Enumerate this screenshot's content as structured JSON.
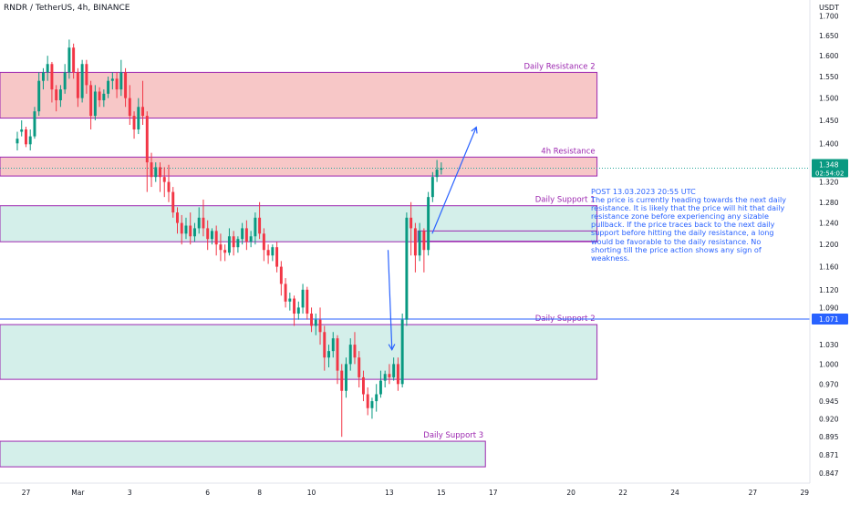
{
  "header": {
    "symbol_title": "RNDR / TetherUS, 4h, BINANCE"
  },
  "currency_label": "USDT",
  "colors": {
    "up": "#089981",
    "down": "#f23645",
    "resistance_fill": "#f7c4c4",
    "support_fill": "#cdece6",
    "zone_border": "#9c27b0",
    "zone_label": "#9c27b0",
    "note": "#2962ff",
    "price_line": "#26a69a",
    "blue_line": "#2962ff"
  },
  "zones": [
    {
      "label": "Daily Resistance 2",
      "type": "resistance",
      "from_day": -3,
      "to_day": 20,
      "top": 1.56,
      "bottom": 1.455
    },
    {
      "label": "4h Resistance",
      "type": "resistance",
      "from_day": -3,
      "to_day": 20,
      "top": 1.371,
      "bottom": 1.332
    },
    {
      "label": "Daily Support 1",
      "type": "support",
      "from_day": -3,
      "to_day": 20,
      "top": 1.273,
      "bottom": 1.205
    },
    {
      "label": "",
      "type": "support",
      "from_day": 13.1,
      "to_day": 20,
      "top": 1.225,
      "bottom": 1.206
    },
    {
      "label": "Daily Support 2",
      "type": "support",
      "from_day": -3,
      "to_day": 20,
      "top": 1.062,
      "bottom": 0.977
    },
    {
      "label": "Daily Support 3",
      "type": "support",
      "from_day": -3,
      "to_day": 15.7,
      "top": 0.889,
      "bottom": 0.855
    }
  ],
  "annotation": {
    "title": "POST 13.03.2023 20:55 UTC",
    "text": "The price is currently heading towards the next daily resistance. It is likely that the price will hit that daily resistance zone before experiencing any sizable pullback. If the price traces back to the next daily support before hitting the daily resistance, a long would be favorable to the daily resistance. No shorting till the price action shows any sign of weakness."
  },
  "chart_data": {
    "type": "candlestick",
    "title": "RNDR / TetherUS, 4h, BINANCE",
    "timeframe": "4h",
    "x_unit": "days from Mar 1, 2023 (4h candles)",
    "x_ticks": [
      {
        "day": -2,
        "label": "27"
      },
      {
        "day": 0,
        "label": "Mar"
      },
      {
        "day": 2,
        "label": "3"
      },
      {
        "day": 5,
        "label": "6"
      },
      {
        "day": 7,
        "label": "8"
      },
      {
        "day": 9,
        "label": "10"
      },
      {
        "day": 12,
        "label": "13"
      },
      {
        "day": 14,
        "label": "15"
      },
      {
        "day": 16,
        "label": "17"
      },
      {
        "day": 19,
        "label": "20"
      },
      {
        "day": 21,
        "label": "22"
      },
      {
        "day": 23,
        "label": "24"
      },
      {
        "day": 26,
        "label": "27"
      },
      {
        "day": 28,
        "label": "29"
      }
    ],
    "x_range": [
      -3.0,
      28.2
    ],
    "y_ticks": [
      1.7,
      1.65,
      1.6,
      1.55,
      1.5,
      1.45,
      1.4,
      1.36,
      1.32,
      1.28,
      1.24,
      1.2,
      1.16,
      1.12,
      1.09,
      1.06,
      1.03,
      1.0,
      0.97,
      0.945,
      0.92,
      0.895,
      0.871,
      0.847
    ],
    "y_scale": "log",
    "y_range": [
      0.834,
      1.742
    ],
    "grid": false,
    "current_price": {
      "value": "1.348",
      "countdown": "02:54:02"
    },
    "marked_level": {
      "value": "1.071"
    },
    "projection_arrows": [
      {
        "from": {
          "day": 13.65,
          "price": 1.22
        },
        "to": {
          "day": 15.35,
          "price": 1.435
        }
      },
      {
        "from": {
          "day": 11.95,
          "price": 1.19
        },
        "to": {
          "day": 12.1,
          "price": 1.022
        }
      }
    ],
    "candles": [
      [
        1.4,
        1.425,
        1.41,
        1.385
      ],
      [
        1.425,
        1.45,
        1.43,
        1.415
      ],
      [
        1.43,
        1.436,
        1.398,
        1.392
      ],
      [
        1.398,
        1.43,
        1.415,
        1.385
      ],
      [
        1.415,
        1.48,
        1.47,
        1.41
      ],
      [
        1.47,
        1.56,
        1.54,
        1.46
      ],
      [
        1.54,
        1.57,
        1.56,
        1.52
      ],
      [
        1.56,
        1.6,
        1.58,
        1.54
      ],
      [
        1.58,
        1.585,
        1.52,
        1.49
      ],
      [
        1.52,
        1.53,
        1.495,
        1.47
      ],
      [
        1.495,
        1.53,
        1.52,
        1.48
      ],
      [
        1.52,
        1.58,
        1.56,
        1.51
      ],
      [
        1.56,
        1.64,
        1.62,
        1.545
      ],
      [
        1.62,
        1.63,
        1.56,
        1.545
      ],
      [
        1.56,
        1.57,
        1.5,
        1.48
      ],
      [
        1.5,
        1.59,
        1.58,
        1.49
      ],
      [
        1.58,
        1.59,
        1.53,
        1.51
      ],
      [
        1.53,
        1.54,
        1.46,
        1.43
      ],
      [
        1.46,
        1.53,
        1.515,
        1.45
      ],
      [
        1.515,
        1.525,
        1.495,
        1.48
      ],
      [
        1.495,
        1.52,
        1.51,
        1.48
      ],
      [
        1.51,
        1.55,
        1.54,
        1.5
      ],
      [
        1.54,
        1.56,
        1.545,
        1.52
      ],
      [
        1.545,
        1.56,
        1.52,
        1.5
      ],
      [
        1.52,
        1.59,
        1.56,
        1.505
      ],
      [
        1.56,
        1.57,
        1.5,
        1.48
      ],
      [
        1.5,
        1.53,
        1.46,
        1.44
      ],
      [
        1.46,
        1.47,
        1.43,
        1.41
      ],
      [
        1.43,
        1.5,
        1.48,
        1.42
      ],
      [
        1.48,
        1.54,
        1.46,
        1.44
      ],
      [
        1.46,
        1.47,
        1.36,
        1.3
      ],
      [
        1.36,
        1.38,
        1.33,
        1.31
      ],
      [
        1.33,
        1.36,
        1.35,
        1.32
      ],
      [
        1.35,
        1.36,
        1.33,
        1.3
      ],
      [
        1.33,
        1.35,
        1.32,
        1.29
      ],
      [
        1.32,
        1.355,
        1.3,
        1.28
      ],
      [
        1.3,
        1.31,
        1.26,
        1.25
      ],
      [
        1.26,
        1.27,
        1.24,
        1.22
      ],
      [
        1.24,
        1.255,
        1.22,
        1.2
      ],
      [
        1.22,
        1.25,
        1.235,
        1.21
      ],
      [
        1.235,
        1.26,
        1.215,
        1.2
      ],
      [
        1.215,
        1.24,
        1.23,
        1.205
      ],
      [
        1.23,
        1.27,
        1.25,
        1.22
      ],
      [
        1.25,
        1.285,
        1.23,
        1.215
      ],
      [
        1.23,
        1.245,
        1.21,
        1.19
      ],
      [
        1.21,
        1.23,
        1.225,
        1.2
      ],
      [
        1.225,
        1.235,
        1.2,
        1.18
      ],
      [
        1.2,
        1.22,
        1.19,
        1.17
      ],
      [
        1.19,
        1.2,
        1.185,
        1.17
      ],
      [
        1.185,
        1.23,
        1.215,
        1.18
      ],
      [
        1.215,
        1.225,
        1.195,
        1.18
      ],
      [
        1.195,
        1.215,
        1.21,
        1.185
      ],
      [
        1.21,
        1.24,
        1.23,
        1.2
      ],
      [
        1.23,
        1.245,
        1.205,
        1.19
      ],
      [
        1.205,
        1.225,
        1.215,
        1.195
      ],
      [
        1.215,
        1.26,
        1.25,
        1.2
      ],
      [
        1.25,
        1.28,
        1.22,
        1.21
      ],
      [
        1.22,
        1.23,
        1.19,
        1.17
      ],
      [
        1.19,
        1.2,
        1.18,
        1.165
      ],
      [
        1.18,
        1.2,
        1.195,
        1.17
      ],
      [
        1.195,
        1.205,
        1.16,
        1.15
      ],
      [
        1.16,
        1.17,
        1.13,
        1.11
      ],
      [
        1.13,
        1.14,
        1.1,
        1.09
      ],
      [
        1.1,
        1.115,
        1.105,
        1.085
      ],
      [
        1.105,
        1.11,
        1.08,
        1.06
      ],
      [
        1.08,
        1.1,
        1.09,
        1.07
      ],
      [
        1.09,
        1.13,
        1.12,
        1.08
      ],
      [
        1.12,
        1.125,
        1.08,
        1.07
      ],
      [
        1.08,
        1.09,
        1.06,
        1.05
      ],
      [
        1.06,
        1.08,
        1.07,
        1.045
      ],
      [
        1.07,
        1.09,
        1.05,
        1.03
      ],
      [
        1.05,
        1.06,
        1.01,
        0.99
      ],
      [
        1.01,
        1.03,
        1.02,
        0.995
      ],
      [
        1.02,
        1.05,
        1.04,
        1.01
      ],
      [
        1.04,
        1.045,
        0.99,
        0.97
      ],
      [
        0.99,
        1.0,
        0.96,
        0.895
      ],
      [
        0.96,
        1.01,
        1.0,
        0.95
      ],
      [
        1.0,
        1.04,
        1.03,
        0.99
      ],
      [
        1.03,
        1.05,
        1.01,
        1.0
      ],
      [
        1.01,
        1.02,
        0.98,
        0.965
      ],
      [
        0.98,
        0.99,
        0.955,
        0.945
      ],
      [
        0.955,
        0.965,
        0.935,
        0.925
      ],
      [
        0.935,
        0.95,
        0.945,
        0.92
      ],
      [
        0.945,
        0.97,
        0.955,
        0.93
      ],
      [
        0.955,
        0.99,
        0.975,
        0.95
      ],
      [
        0.975,
        0.99,
        0.985,
        0.965
      ],
      [
        0.985,
        1.0,
        0.98,
        0.97
      ],
      [
        0.98,
        1.01,
        1.0,
        0.975
      ],
      [
        1.0,
        1.01,
        0.97,
        0.96
      ],
      [
        0.97,
        1.08,
        1.07,
        0.965
      ],
      [
        1.07,
        1.26,
        1.25,
        1.06
      ],
      [
        1.25,
        1.28,
        1.23,
        1.18
      ],
      [
        1.23,
        1.24,
        1.18,
        1.15
      ],
      [
        1.18,
        1.24,
        1.225,
        1.17
      ],
      [
        1.225,
        1.23,
        1.19,
        1.15
      ],
      [
        1.19,
        1.3,
        1.29,
        1.18
      ],
      [
        1.29,
        1.34,
        1.33,
        1.28
      ],
      [
        1.33,
        1.365,
        1.345,
        1.32
      ],
      [
        1.345,
        1.36,
        1.348,
        1.335
      ]
    ]
  }
}
